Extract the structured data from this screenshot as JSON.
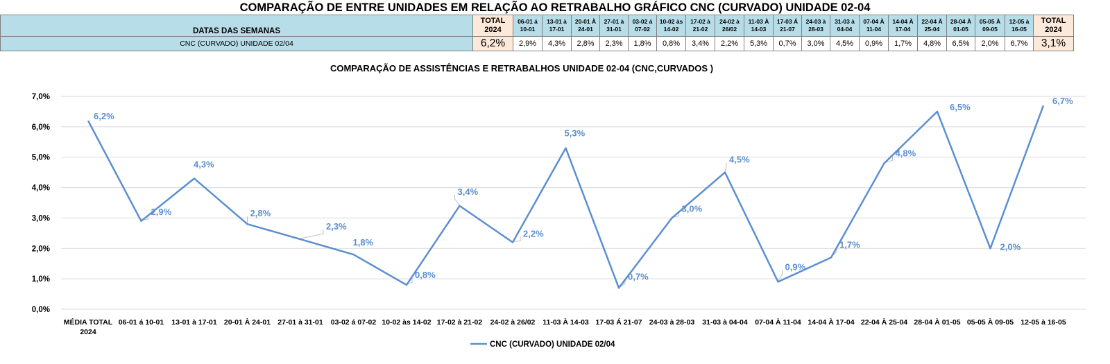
{
  "title": "COMPARAÇÃO DE ENTRE UNIDADES EM RELAÇÃO AO RETRABALHO GRÁFICO CNC (CURVADO) UNIDADE 02-04",
  "table": {
    "header_label": "DATAS DAS SEMANAS",
    "row_label": "CNC (CURVADO) UNIDADE 02/04",
    "total_first": {
      "label": "TOTAL 2024",
      "value": "6,2%"
    },
    "weeks": [
      {
        "label": "06-01 á 10-01",
        "value": "2,9%"
      },
      {
        "label": "13-01 à 17-01",
        "value": "4,3%"
      },
      {
        "label": "20-01 À 24-01",
        "value": "2,8%"
      },
      {
        "label": "27-01 à 31-01",
        "value": "2,3%"
      },
      {
        "label": "03-02 á 07-02",
        "value": "1,8%"
      },
      {
        "label": "10-02 às 14-02",
        "value": "0,8%"
      },
      {
        "label": "17-02 à 21-02",
        "value": "3,4%"
      },
      {
        "label": "24-02 à 26/02",
        "value": "2,2%"
      },
      {
        "label": "11-03 À 14-03",
        "value": "5,3%"
      },
      {
        "label": "17-03 Á 21-07",
        "value": "0,7%"
      },
      {
        "label": "24-03 à 28-03",
        "value": "3,0%"
      },
      {
        "label": "31-03 à 04-04",
        "value": "4,5%"
      },
      {
        "label": "07-04 À 11-04",
        "value": "0,9%"
      },
      {
        "label": "14-04 À 17-04",
        "value": "1,7%"
      },
      {
        "label": "22-04 À 25-04",
        "value": "4,8%"
      },
      {
        "label": "28-04 À 01-05",
        "value": "6,5%"
      },
      {
        "label": "05-05 À 09-05",
        "value": "2,0%"
      },
      {
        "label": "12-05 à 16-05",
        "value": "6,7%"
      }
    ],
    "total_last": {
      "label": "TOTAL 2024",
      "value": "3,1%"
    }
  },
  "chart_data": {
    "type": "line",
    "title": "COMPARAÇÃO DE ASSISTÊNCIAS E RETRABALHOS UNIDADE 02-04  (CNC,CURVADOS )",
    "categories": [
      "MÉDIA TOTAL 2024",
      "06-01 á 10-01",
      "13-01 à 17-01",
      "20-01 À 24-01",
      "27-01 à 31-01",
      "03-02 á 07-02",
      "10-02 às 14-02",
      "17-02 à 21-02",
      "24-02 à 26/02",
      "11-03 À 14-03",
      "17-03 Á 21-07",
      "24-03 à 28-03",
      "31-03 à 04-04",
      "07-04 À 11-04",
      "14-04 À 17-04",
      "22-04 À 25-04",
      "28-04 À 01-05",
      "05-05 À 09-05",
      "12-05 à 16-05"
    ],
    "series": [
      {
        "name": "CNC (CURVADO) UNIDADE 02/04",
        "values": [
          6.2,
          2.9,
          4.3,
          2.8,
          2.3,
          1.8,
          0.8,
          3.4,
          2.2,
          5.3,
          0.7,
          3.0,
          4.5,
          0.9,
          1.7,
          4.8,
          6.5,
          2.0,
          6.7
        ],
        "labels": [
          "6,2%",
          "2,9%",
          "4,3%",
          "2,8%",
          "2,3%",
          "1,8%",
          "0,8%",
          "3,4%",
          "2,2%",
          "5,3%",
          "0,7%",
          "3,0%",
          "4,5%",
          "0,9%",
          "1,7%",
          "4,8%",
          "6,5%",
          "2,0%",
          "6,7%"
        ],
        "color": "#5b8fd0"
      }
    ],
    "ylim": [
      0,
      7
    ],
    "yticks": [
      "0,0%",
      "1,0%",
      "2,0%",
      "3,0%",
      "4,0%",
      "5,0%",
      "6,0%",
      "7,0%"
    ],
    "grid": true,
    "legend": "bottom-center",
    "colors": {
      "line": "#5b8fd0",
      "label": "#5b8fd0",
      "grid": "#d9d9d9"
    }
  }
}
